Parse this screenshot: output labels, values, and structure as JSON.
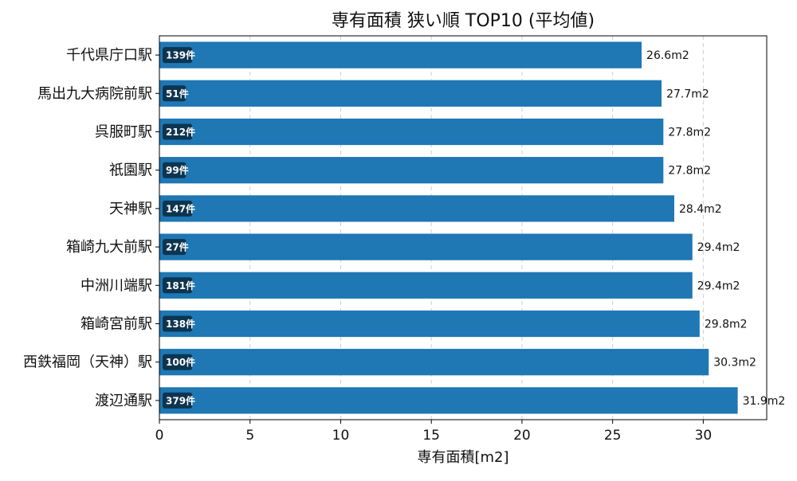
{
  "chart_data": {
    "type": "bar",
    "orientation": "horizontal",
    "title": "専有面積 狭い順 TOP10 (平均値)",
    "xlabel": "専有面積[m2]",
    "ylabel": "",
    "xlim": [
      0,
      33.5
    ],
    "xticks": [
      0,
      5,
      10,
      15,
      20,
      25,
      30
    ],
    "grid": "x",
    "bar_color": "#1f77b4",
    "badge_color": "#0d3550",
    "categories": [
      "千代県庁口駅",
      "馬出九大病院前駅",
      "呉服町駅",
      "祇園駅",
      "天神駅",
      "箱崎九大前駅",
      "中洲川端駅",
      "箱崎宮前駅",
      "西鉄福岡（天神）駅",
      "渡辺通駅"
    ],
    "values": [
      26.6,
      27.7,
      27.8,
      27.8,
      28.4,
      29.4,
      29.4,
      29.8,
      30.3,
      31.9
    ],
    "value_labels": [
      "26.6m2",
      "27.7m2",
      "27.8m2",
      "27.8m2",
      "28.4m2",
      "29.4m2",
      "29.4m2",
      "29.8m2",
      "30.3m2",
      "31.9m2"
    ],
    "counts": [
      "139件",
      "51件",
      "212件",
      "99件",
      "147件",
      "27件",
      "181件",
      "138件",
      "100件",
      "379件"
    ]
  }
}
